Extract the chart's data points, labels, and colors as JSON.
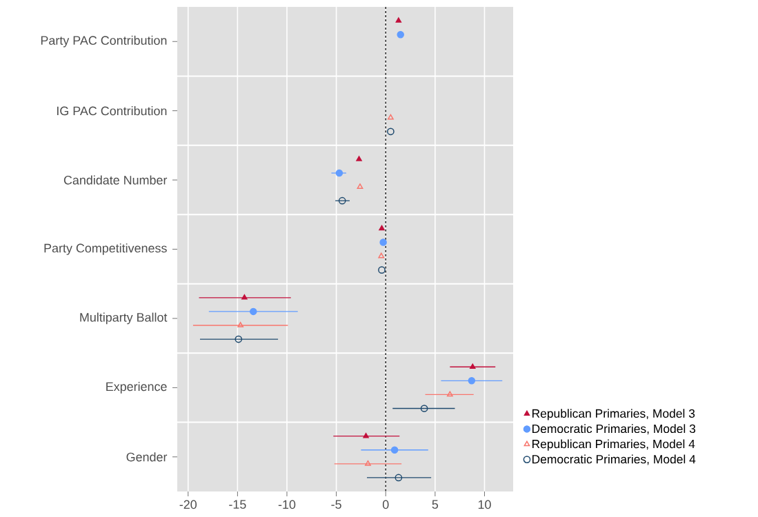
{
  "chart_data": {
    "type": "scatter",
    "orientation": "horizontal",
    "categories": [
      "Party PAC Contribution",
      "IG PAC Contribution",
      "Candidate Number",
      "Party Competitiveness",
      "Multiparty Ballot",
      "Experience",
      "Gender"
    ],
    "series": [
      {
        "name": "Republican Primaries, Model 3",
        "color": "#c2103c",
        "marker": "triangle",
        "values": [
          1.3,
          null,
          -2.7,
          -0.4,
          -14.3,
          8.8,
          -2.0
        ],
        "errors": [
          null,
          null,
          null,
          null,
          [
            -18.9,
            -9.6
          ],
          [
            6.5,
            11.1
          ],
          [
            -5.3,
            1.4
          ]
        ]
      },
      {
        "name": "Democratic Primaries, Model 3",
        "color": "#619cff",
        "marker": "circle",
        "values": [
          1.5,
          null,
          -4.7,
          -0.25,
          -13.4,
          8.7,
          0.9
        ],
        "errors": [
          null,
          null,
          [
            -5.5,
            -4.0
          ],
          null,
          [
            -17.9,
            -8.9
          ],
          [
            5.6,
            11.8
          ],
          [
            -2.5,
            4.3
          ]
        ]
      },
      {
        "name": "Republican Primaries, Model 4",
        "color": "#f8766d",
        "marker": "triangle",
        "values": [
          null,
          0.5,
          -2.6,
          -0.45,
          -14.7,
          6.5,
          -1.8
        ],
        "errors": [
          null,
          null,
          null,
          null,
          [
            -19.5,
            -9.9
          ],
          [
            4.0,
            8.9
          ],
          [
            -5.2,
            1.6
          ]
        ]
      },
      {
        "name": "Democratic Primaries, Model 4",
        "color": "#1f4a6e",
        "marker": "circle",
        "values": [
          null,
          0.5,
          -4.4,
          -0.4,
          -14.9,
          3.9,
          1.3
        ],
        "errors": [
          null,
          null,
          [
            -5.1,
            -3.65
          ],
          null,
          [
            -18.8,
            -10.9
          ],
          [
            0.7,
            7.0
          ],
          [
            -1.9,
            4.6
          ]
        ]
      }
    ],
    "xlim": [
      -21.1,
      12.9
    ],
    "xticks": [
      -20,
      -15,
      -10,
      -5,
      0,
      5,
      10
    ],
    "ref_lines": [
      {
        "axis": "x",
        "value": 0,
        "color": "#000000",
        "line_style": "dashed"
      }
    ],
    "grid": true,
    "legend": "right"
  }
}
